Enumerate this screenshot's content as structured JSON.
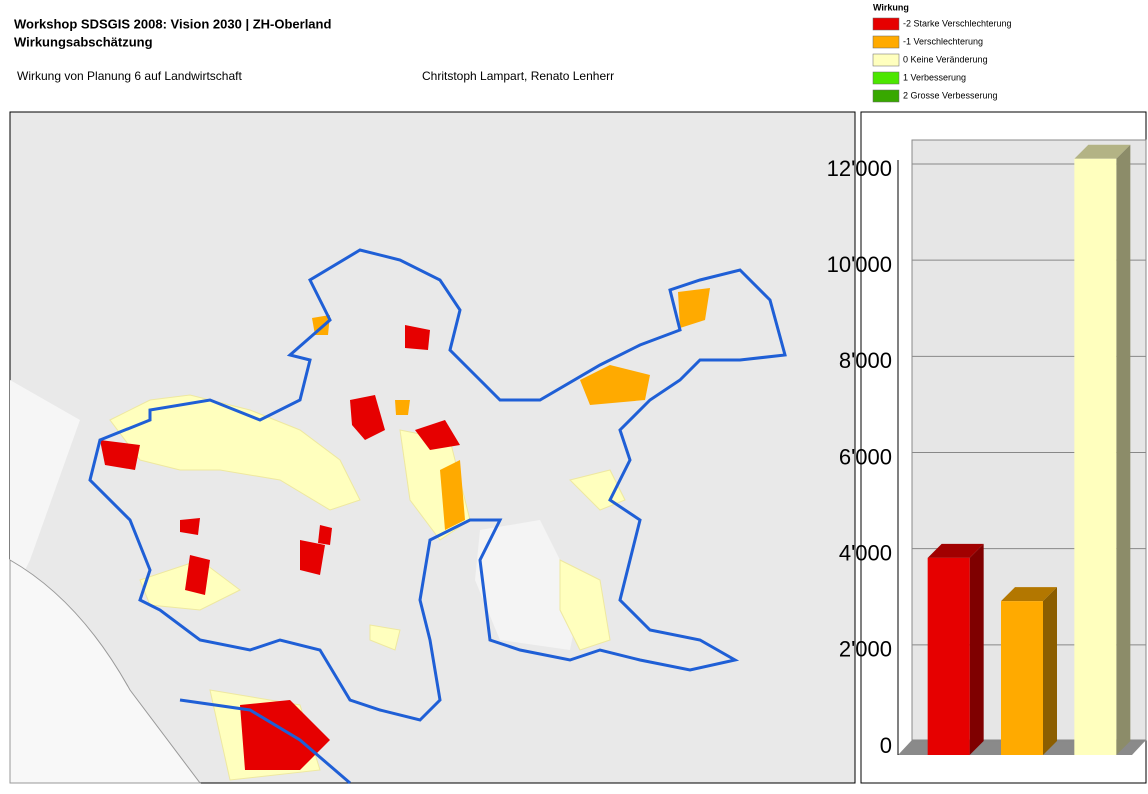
{
  "header": {
    "title": "Workshop SDSGIS 2008: Vision 2030 | ZH-Oberland",
    "subtitle": "Wirkungsabschätzung",
    "description": "Wirkung von Planung 6 auf Landwirtschaft",
    "authors": "Chritstoph Lampart, Renato Lenherr"
  },
  "chart_data": {
    "type": "bar",
    "legend_title": "Wirkung",
    "categories": [
      "-2 Starke Verschlechterung",
      "-1 Verschlechterung",
      "0 Keine Veränderung",
      "1 Verbesserung",
      "2 Grosse Verbesserung"
    ],
    "colors": [
      "#e60000",
      "#ffaa00",
      "#ffffbe",
      "#4ce600",
      "#38a800"
    ],
    "values": [
      4100,
      3200,
      12400,
      null,
      null
    ],
    "ylim": [
      0,
      12000
    ],
    "yticks": [
      0,
      {
        "value": 2000,
        "label": "2'000"
      },
      {
        "value": 4000,
        "label": "4'000"
      },
      {
        "value": 6000,
        "label": "6'000"
      },
      {
        "value": 8000,
        "label": "8'000"
      },
      {
        "value": 10000,
        "label": "10'000"
      },
      {
        "value": 12000,
        "label": "12'000"
      }
    ],
    "grid": true
  }
}
